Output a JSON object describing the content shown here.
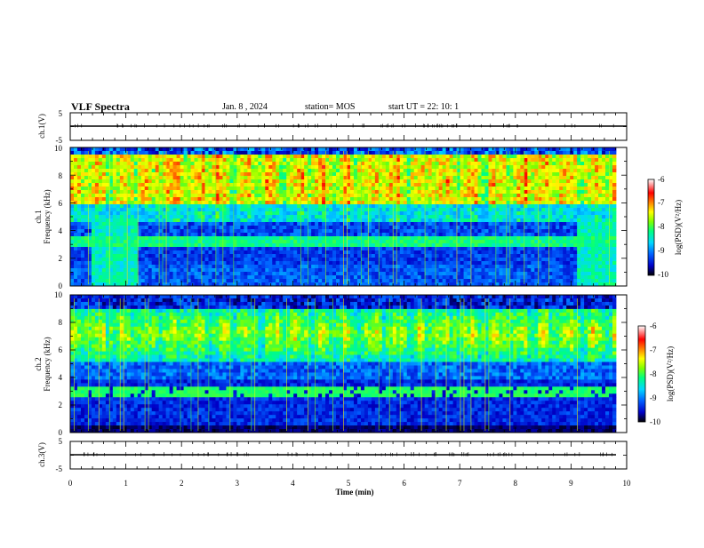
{
  "header": {
    "title": "VLF Spectra",
    "date": "Jan. 8 , 2024",
    "station": "station= MOS",
    "start": "start UT =  22: 10: 1"
  },
  "chart_data": [
    {
      "type": "line",
      "panel": "ch1-waveform",
      "ylabel": "ch.1(V)",
      "ylim": [
        -5,
        5
      ],
      "yticks": [
        "5",
        "-5"
      ],
      "xlim": [
        0,
        10
      ],
      "series": [
        {
          "x": [
            0,
            10
          ],
          "values": [
            0,
            0
          ]
        }
      ]
    },
    {
      "type": "heatmap",
      "panel": "ch1-spectrogram",
      "ylabel": [
        "ch.1",
        "Frequency (kHz)"
      ],
      "ylim": [
        0,
        10
      ],
      "yticks": [
        "0",
        "2",
        "4",
        "6",
        "8",
        "10"
      ],
      "xlim": [
        0,
        10
      ],
      "colorbar": {
        "label": "log(PSD)(V²/Hz)",
        "range": [
          -10,
          -6
        ],
        "ticks": [
          "-6",
          "-7",
          "-8",
          "-9",
          "-10"
        ],
        "colors": [
          "#000000",
          "#0000c8",
          "#0060ff",
          "#00d8ff",
          "#00ff80",
          "#80ff00",
          "#ffff00",
          "#ff8000",
          "#ff0000",
          "#ffffff"
        ]
      }
    },
    {
      "type": "heatmap",
      "panel": "ch2-spectrogram",
      "ylabel": [
        "ch.2",
        "Frequency (kHz)"
      ],
      "ylim": [
        0,
        10
      ],
      "yticks": [
        "0",
        "2",
        "4",
        "6",
        "8",
        "10"
      ],
      "xlim": [
        0,
        10
      ],
      "colorbar": {
        "label": "log(PSD)(V²/Hz)",
        "range": [
          -10,
          -6
        ],
        "ticks": [
          "-6",
          "-7",
          "-8",
          "-9",
          "-10"
        ],
        "colors": [
          "#000000",
          "#0000c8",
          "#0060ff",
          "#00d8ff",
          "#00ff80",
          "#80ff00",
          "#ffff00",
          "#ff8000",
          "#ff0000",
          "#ffffff"
        ]
      }
    },
    {
      "type": "line",
      "panel": "ch3-waveform",
      "ylabel": "ch.3(V)",
      "ylim": [
        -5,
        5
      ],
      "yticks": [
        "5",
        "-5"
      ],
      "xlim": [
        0,
        10
      ],
      "xlabel": "Time (min)",
      "xticks": [
        "0",
        "1",
        "2",
        "3",
        "4",
        "5",
        "6",
        "7",
        "8",
        "9",
        "10"
      ],
      "series": [
        {
          "x": [
            0,
            10
          ],
          "values": [
            0,
            0
          ]
        }
      ]
    }
  ]
}
